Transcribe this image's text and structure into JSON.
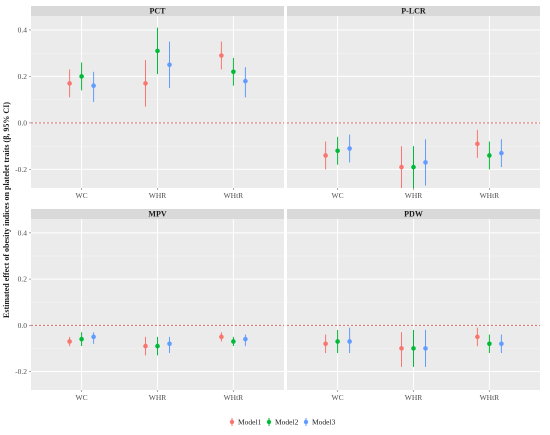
{
  "chart_data": {
    "type": "errorbar",
    "ylabel": "Estimated effect of obesity indices on platelet traits (β, 95% CI)",
    "ylim": [
      -0.28,
      0.46
    ],
    "yticks": [
      -0.2,
      0.0,
      0.2,
      0.4
    ],
    "ytick_labels": [
      "-0.2",
      "0.0",
      "0.2",
      "0.4"
    ],
    "reference_line": 0,
    "categories": [
      "WC",
      "WHR",
      "WHtR"
    ],
    "category_labels": [
      "WC",
      "WHR",
      "WHtR"
    ],
    "colors": {
      "Model1": "#f8766d",
      "Model2": "#00ba38",
      "Model3": "#619cff",
      "refline": "#e0524a"
    },
    "legend": {
      "position": "bottom",
      "items": [
        "Model1",
        "Model2",
        "Model3"
      ]
    },
    "panels": [
      {
        "title": "PCT",
        "series": [
          {
            "name": "Model1",
            "values": [
              0.17,
              0.17,
              0.29
            ],
            "lower": [
              0.11,
              0.07,
              0.23
            ],
            "upper": [
              0.23,
              0.27,
              0.35
            ]
          },
          {
            "name": "Model2",
            "values": [
              0.2,
              0.31,
              0.22
            ],
            "lower": [
              0.14,
              0.21,
              0.16
            ],
            "upper": [
              0.26,
              0.41,
              0.28
            ]
          },
          {
            "name": "Model3",
            "values": [
              0.16,
              0.25,
              0.18
            ],
            "lower": [
              0.09,
              0.15,
              0.11
            ],
            "upper": [
              0.22,
              0.35,
              0.24
            ]
          }
        ]
      },
      {
        "title": "P-LCR",
        "series": [
          {
            "name": "Model1",
            "values": [
              -0.14,
              -0.19,
              -0.09
            ],
            "lower": [
              -0.2,
              -0.28,
              -0.15
            ],
            "upper": [
              -0.08,
              -0.1,
              -0.03
            ]
          },
          {
            "name": "Model2",
            "values": [
              -0.12,
              -0.19,
              -0.14
            ],
            "lower": [
              -0.18,
              -0.28,
              -0.2
            ],
            "upper": [
              -0.06,
              -0.1,
              -0.08
            ]
          },
          {
            "name": "Model3",
            "values": [
              -0.11,
              -0.17,
              -0.13
            ],
            "lower": [
              -0.17,
              -0.27,
              -0.19
            ],
            "upper": [
              -0.05,
              -0.07,
              -0.07
            ]
          }
        ]
      },
      {
        "title": "MPV",
        "series": [
          {
            "name": "Model1",
            "values": [
              -0.07,
              -0.09,
              -0.05
            ],
            "lower": [
              -0.09,
              -0.13,
              -0.07
            ],
            "upper": [
              -0.05,
              -0.05,
              -0.03
            ]
          },
          {
            "name": "Model2",
            "values": [
              -0.06,
              -0.09,
              -0.07
            ],
            "lower": [
              -0.09,
              -0.13,
              -0.09
            ],
            "upper": [
              -0.03,
              -0.05,
              -0.05
            ]
          },
          {
            "name": "Model3",
            "values": [
              -0.05,
              -0.08,
              -0.06
            ],
            "lower": [
              -0.08,
              -0.12,
              -0.09
            ],
            "upper": [
              -0.03,
              -0.05,
              -0.04
            ]
          }
        ]
      },
      {
        "title": "PDW",
        "series": [
          {
            "name": "Model1",
            "values": [
              -0.08,
              -0.1,
              -0.05
            ],
            "lower": [
              -0.12,
              -0.18,
              -0.09
            ],
            "upper": [
              -0.04,
              -0.03,
              -0.01
            ]
          },
          {
            "name": "Model2",
            "values": [
              -0.07,
              -0.1,
              -0.08
            ],
            "lower": [
              -0.12,
              -0.18,
              -0.12
            ],
            "upper": [
              -0.02,
              -0.02,
              -0.04
            ]
          },
          {
            "name": "Model3",
            "values": [
              -0.07,
              -0.1,
              -0.08
            ],
            "lower": [
              -0.12,
              -0.18,
              -0.12
            ],
            "upper": [
              -0.01,
              -0.02,
              -0.04
            ]
          }
        ]
      }
    ]
  }
}
